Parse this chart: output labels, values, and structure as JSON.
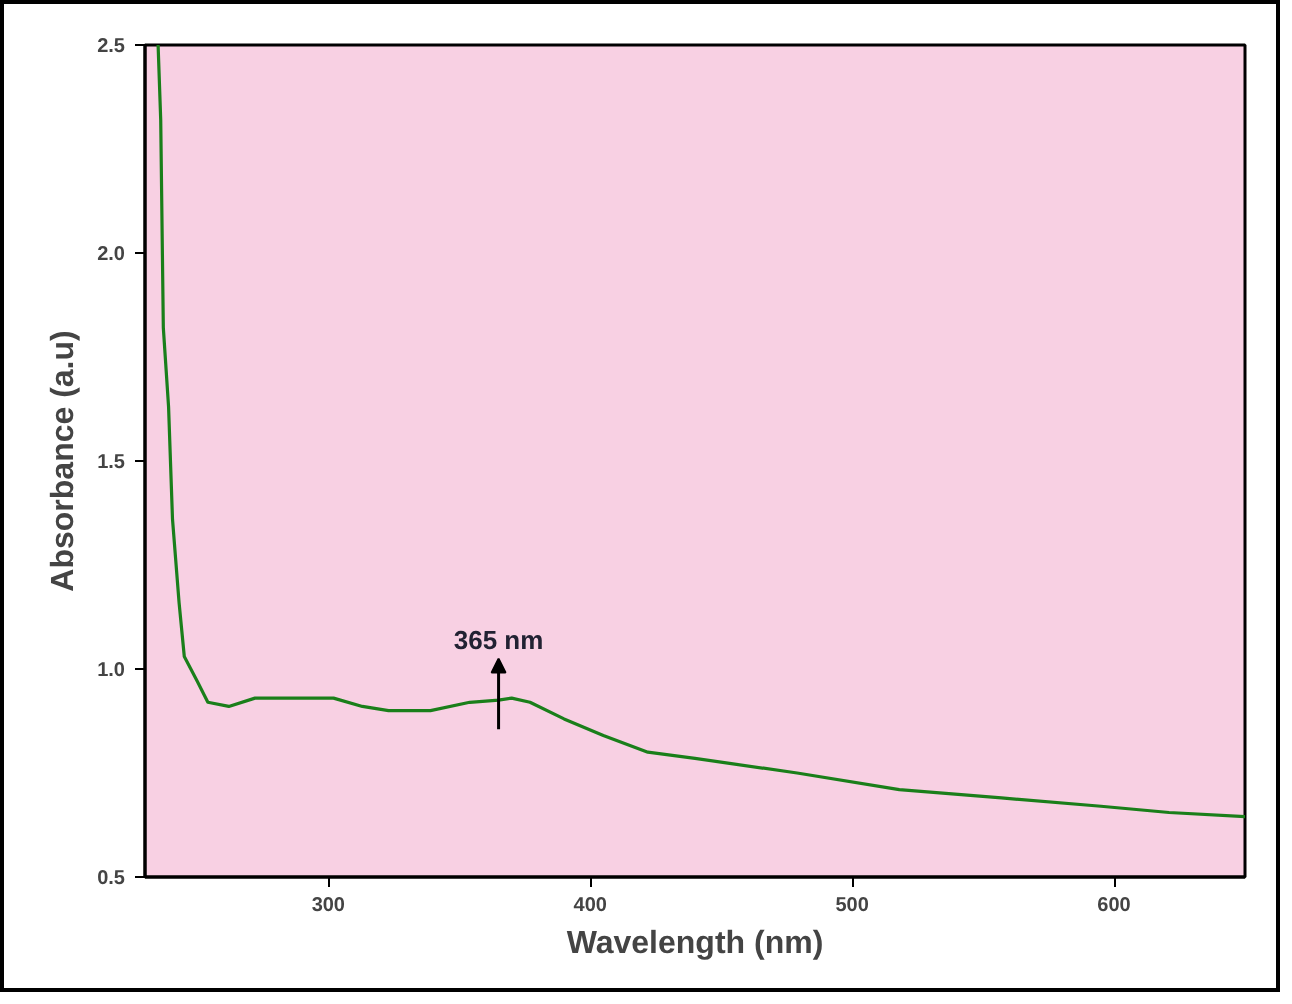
{
  "chart_data": {
    "type": "line",
    "xlabel": "Wavelength (nm)",
    "ylabel": "Absorbance (a.u)",
    "x": [
      235,
      236,
      237,
      239,
      240.5,
      243,
      245,
      250,
      254,
      262,
      272,
      302,
      313,
      323,
      339,
      354,
      365,
      370,
      377,
      390,
      405,
      422,
      440,
      479,
      518,
      557,
      595,
      621,
      650
    ],
    "series": [
      {
        "color": "#1a7f1a",
        "values": [
          2.5,
          2.32,
          1.82,
          1.63,
          1.36,
          1.16,
          1.03,
          0.97,
          0.92,
          0.91,
          0.93,
          0.93,
          0.91,
          0.9,
          0.9,
          0.92,
          0.925,
          0.93,
          0.92,
          0.88,
          0.84,
          0.8,
          0.785,
          0.75,
          0.71,
          0.69,
          0.67,
          0.655,
          0.645
        ]
      }
    ],
    "xlim": [
      230,
      650
    ],
    "ylim": [
      0.5,
      2.5
    ],
    "xticks": [
      300,
      400,
      500,
      600
    ],
    "yticks": [
      0.5,
      {
        "value": 1,
        "label": "1.0"
      },
      1.5,
      {
        "value": 2,
        "label": "2.0"
      },
      2.5
    ],
    "annotations": [
      {
        "text": "365 nm",
        "x": 365,
        "y": 0.925
      }
    ],
    "grid": false,
    "marker": "none",
    "line_style": "solid"
  }
}
